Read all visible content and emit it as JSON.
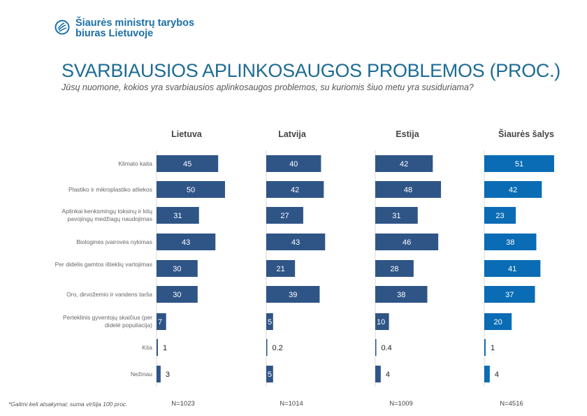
{
  "header": {
    "logo_icon": "nordic-swan-icon",
    "org_line1": "Šiaurės ministrų tarybos",
    "org_line2": "biuras Lietuvoje",
    "title": "SVARBIAUSIOS APLINKOSAUGOS PROBLEMOS (PROC.)",
    "subtitle": "Jūsų nuomone, kokios yra svarbiausios aplinkosaugos problemos, su kuriomis šiuo metu yra susiduriama?"
  },
  "footer": {
    "footnote": "*Galimi keli atsakymai; suma viršija 100 proc.",
    "n_values": [
      "N=1023",
      "N=1014",
      "N=1009",
      "N=4516"
    ]
  },
  "colors": {
    "baltic_bar": "#2f5587",
    "nordic_bar": "#0a6cb4",
    "title": "#1d6b93"
  },
  "chart_data": {
    "type": "bar",
    "orientation": "horizontal",
    "title": "SVARBIAUSIOS APLINKOSAUGOS PROBLEMOS (PROC.)",
    "subtitle": "Jūsų nuomone, kokios yra svarbiausios aplinkosaugos problemos, su kuriomis šiuo metu yra susiduriama?",
    "xlabel": "",
    "ylabel": "",
    "xlim": [
      0,
      60
    ],
    "grid": false,
    "legend": "none",
    "categories": [
      "Klimato kaita",
      "Plastiko ir mikroplastiko atliekos",
      "Aplinkai kenksmingų toksinų ir kitų pavojingų medžiagų naudojimas",
      "Biologinės įvairovės nykimas",
      "Per didelis gamtos išteklių vartojimas",
      "Oro, dirvožemio ir vandens tarša",
      "Perteklinis gyventojų skaičius (per didelė populiacija)",
      "Kita",
      "Nežinau"
    ],
    "series": [
      {
        "name": "Lietuva",
        "n": "N=1023",
        "values": [
          45,
          50,
          31,
          43,
          30,
          30,
          7,
          1,
          3
        ]
      },
      {
        "name": "Latvija",
        "n": "N=1014",
        "values": [
          40,
          42,
          27,
          43,
          21,
          39,
          5,
          0.2,
          5
        ]
      },
      {
        "name": "Estija",
        "n": "N=1009",
        "values": [
          42,
          48,
          31,
          46,
          28,
          38,
          10,
          0.4,
          4
        ]
      },
      {
        "name": "Šiaurės šalys",
        "n": "N=4516",
        "values": [
          51,
          42,
          23,
          38,
          41,
          37,
          20,
          1,
          4
        ]
      }
    ]
  }
}
